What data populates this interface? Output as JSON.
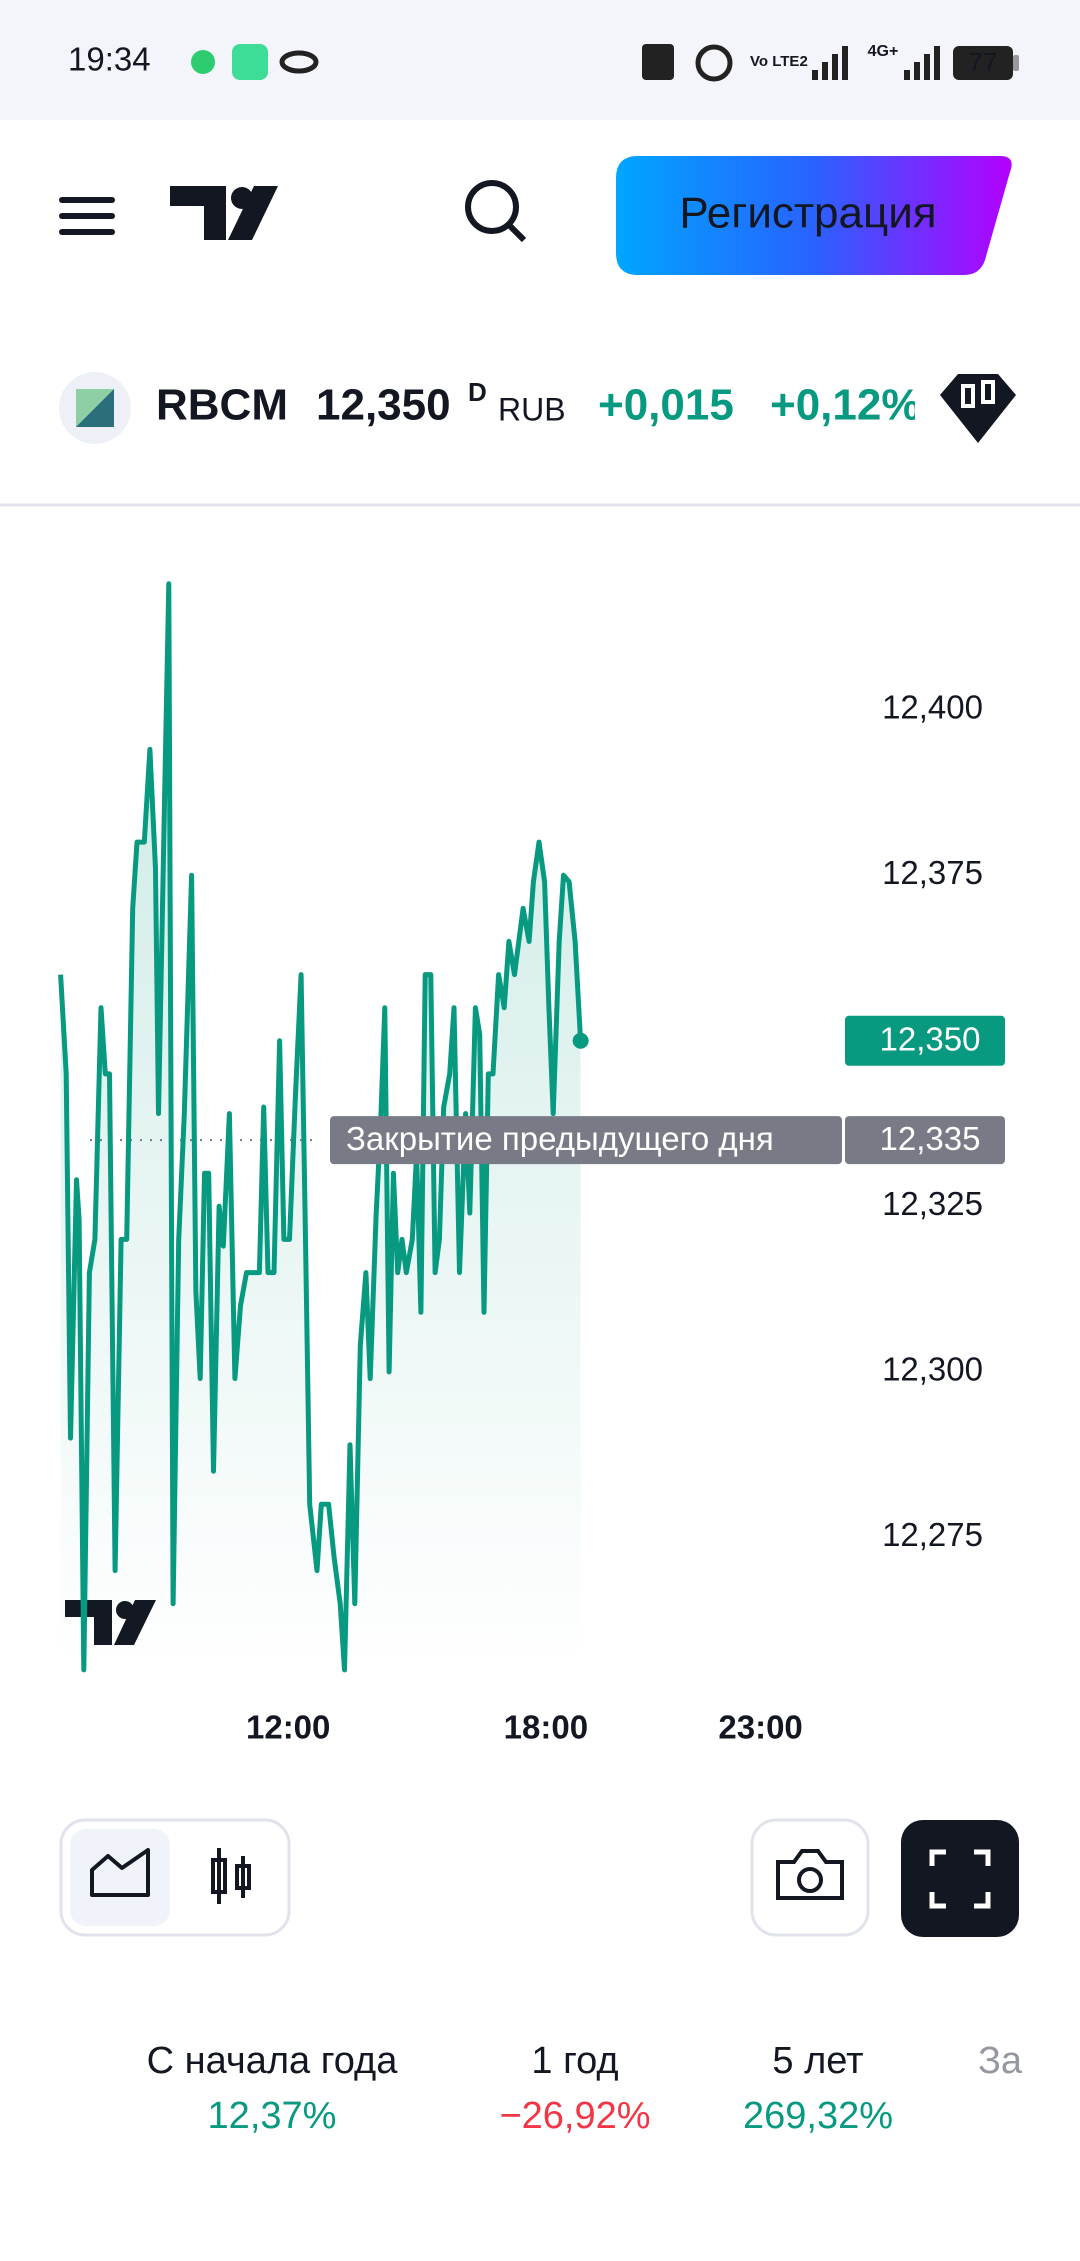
{
  "status_bar": {
    "time": "19:34",
    "network": "4G+",
    "volte": "Vo LTE2",
    "battery": "77"
  },
  "header": {
    "button": "Регистрация"
  },
  "ticker": {
    "symbol": "RBCM",
    "price": "12,350",
    "flag": "D",
    "currency": "RUB",
    "change": "+0,015",
    "change_percent": "+0,12%"
  },
  "chart_data": {
    "type": "line",
    "color": "#089981",
    "x": [
      6.7,
      6.83,
      6.93,
      7.07,
      7.13,
      7.24,
      7.37,
      7.5,
      7.64,
      7.74,
      7.84,
      7.97,
      8.11,
      8.24,
      8.38,
      8.48,
      8.65,
      8.78,
      8.91,
      8.98,
      9.12,
      9.22,
      9.32,
      9.45,
      9.58,
      9.75,
      9.85,
      9.95,
      10.05,
      10.15,
      10.26,
      10.39,
      10.49,
      10.63,
      10.76,
      10.89,
      11.03,
      11.33,
      11.43,
      11.53,
      11.67,
      11.8,
      11.9,
      12.03,
      12.17,
      12.3,
      12.4,
      12.5,
      12.67,
      12.77,
      12.94,
      13.07,
      13.21,
      13.31,
      13.44,
      13.55,
      13.68,
      13.81,
      13.91,
      14.05,
      14.15,
      14.25,
      14.35,
      14.45,
      14.55,
      14.65,
      14.75,
      14.89,
      14.99,
      15.09,
      15.19,
      15.32,
      15.42,
      15.52,
      15.62,
      15.76,
      15.86,
      15.99,
      16.13,
      16.23,
      16.36,
      16.46,
      16.56,
      16.66,
      16.77,
      16.9,
      17.03,
      17.14,
      17.27,
      17.37,
      17.47,
      17.61,
      17.71,
      17.84,
      17.97,
      18.07,
      18.17,
      18.31,
      18.41,
      18.54,
      18.68,
      18.81
    ],
    "values": [
      12.36,
      12.345,
      12.29,
      12.329,
      12.323,
      12.255,
      12.315,
      12.32,
      12.355,
      12.345,
      12.345,
      12.27,
      12.32,
      12.32,
      12.37,
      12.38,
      12.38,
      12.394,
      12.376,
      12.339,
      12.386,
      12.419,
      12.265,
      12.32,
      12.339,
      12.375,
      12.312,
      12.299,
      12.33,
      12.33,
      12.285,
      12.325,
      12.319,
      12.339,
      12.299,
      12.31,
      12.315,
      12.315,
      12.34,
      12.315,
      12.315,
      12.35,
      12.32,
      12.32,
      12.342,
      12.36,
      12.321,
      12.28,
      12.27,
      12.28,
      12.28,
      12.272,
      12.265,
      12.255,
      12.289,
      12.265,
      12.304,
      12.315,
      12.299,
      12.324,
      12.337,
      12.355,
      12.3,
      12.33,
      12.315,
      12.32,
      12.315,
      12.32,
      12.333,
      12.309,
      12.36,
      12.36,
      12.315,
      12.32,
      12.34,
      12.345,
      12.355,
      12.315,
      12.339,
      12.324,
      12.355,
      12.351,
      12.309,
      12.345,
      12.345,
      12.36,
      12.355,
      12.365,
      12.36,
      12.365,
      12.37,
      12.365,
      12.374,
      12.38,
      12.374,
      12.355,
      12.339,
      12.365,
      12.375,
      12.374,
      12.365,
      12.35
    ],
    "xlim": [
      6.5,
      24.5
    ],
    "xticks": [
      {
        "value": 12,
        "label": "12:00"
      },
      {
        "value": 18,
        "label": "18:00"
      },
      {
        "value": 23,
        "label": "23:00"
      }
    ],
    "ylim": [
      12.25,
      12.43
    ],
    "yticks": [
      {
        "value": 12.275,
        "label": "12,275"
      },
      {
        "value": 12.3,
        "label": "12,300"
      },
      {
        "value": 12.325,
        "label": "12,325"
      },
      {
        "value": 12.375,
        "label": "12,375"
      },
      {
        "value": 12.4,
        "label": "12,400"
      }
    ],
    "last_price": {
      "value": 12.35,
      "label": "12,350"
    },
    "prev_close": {
      "value": 12.335,
      "label": "12,335",
      "text": "Закрытие предыдущего дня"
    }
  },
  "performance": [
    {
      "label": "С начала года",
      "value": "12,37%"
    },
    {
      "label": "1 год",
      "value": "−26,92%"
    },
    {
      "label": "5 лет",
      "value": "269,32%"
    },
    {
      "label": "За"
    }
  ]
}
